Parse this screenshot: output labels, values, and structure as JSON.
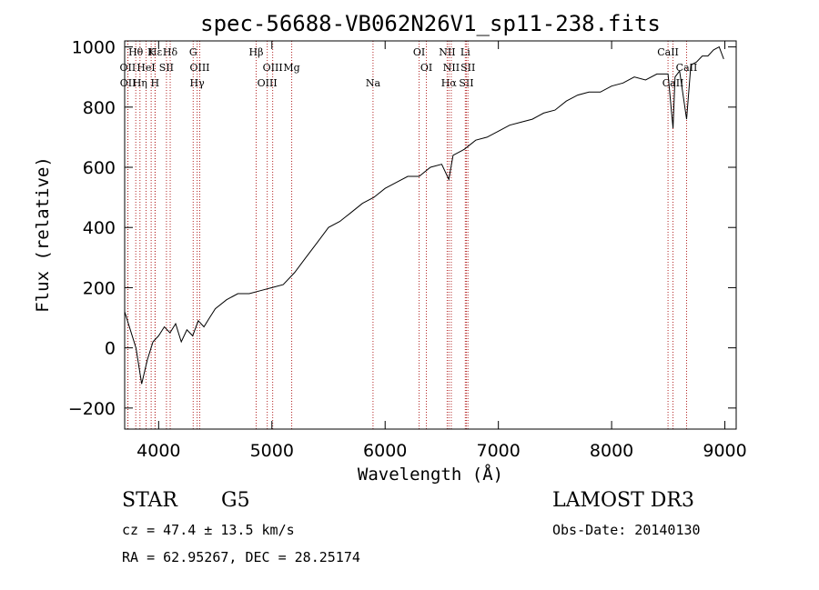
{
  "chart_data": {
    "type": "line",
    "title": "spec-56688-VB062N26V1_sp11-238.fits",
    "xlabel": "Wavelength (Å)",
    "ylabel": "Flux (relative)",
    "xlim": [
      3700,
      9100
    ],
    "ylim": [
      -270,
      1020
    ],
    "x_ticks": [
      4000,
      5000,
      6000,
      7000,
      8000,
      9000
    ],
    "y_ticks": [
      -200,
      0,
      200,
      400,
      600,
      800,
      1000
    ],
    "grid": false,
    "series": [
      {
        "name": "flux",
        "x": [
          3700,
          3750,
          3800,
          3850,
          3900,
          3950,
          4000,
          4050,
          4100,
          4150,
          4200,
          4250,
          4300,
          4350,
          4400,
          4450,
          4500,
          4600,
          4700,
          4800,
          4900,
          5000,
          5100,
          5200,
          5300,
          5400,
          5500,
          5600,
          5700,
          5800,
          5900,
          6000,
          6100,
          6200,
          6300,
          6400,
          6500,
          6562,
          6600,
          6700,
          6800,
          6900,
          7000,
          7100,
          7200,
          7300,
          7400,
          7500,
          7600,
          7700,
          7800,
          7900,
          8000,
          8100,
          8200,
          8300,
          8400,
          8498,
          8542,
          8560,
          8600,
          8662,
          8700,
          8750,
          8800,
          8850,
          8900,
          8950,
          8990
        ],
        "y": [
          120,
          60,
          0,
          -120,
          -40,
          20,
          40,
          70,
          50,
          80,
          20,
          60,
          40,
          90,
          70,
          100,
          130,
          160,
          180,
          180,
          190,
          200,
          210,
          250,
          300,
          350,
          400,
          420,
          450,
          480,
          500,
          530,
          550,
          570,
          570,
          600,
          610,
          560,
          640,
          660,
          690,
          700,
          720,
          740,
          750,
          760,
          780,
          790,
          820,
          840,
          850,
          850,
          870,
          880,
          900,
          890,
          910,
          910,
          730,
          900,
          920,
          760,
          940,
          950,
          970,
          970,
          990,
          1000,
          960
        ]
      }
    ],
    "spectral_lines": [
      {
        "label": "Hθ",
        "wavelength": 3798
      },
      {
        "label": "OII",
        "wavelength": 3727
      },
      {
        "label": "OII",
        "wavelength": 3729
      },
      {
        "label": "Hε",
        "wavelength": 3970
      },
      {
        "label": "HeI",
        "wavelength": 3889
      },
      {
        "label": "Hη",
        "wavelength": 3835
      },
      {
        "label": "K",
        "wavelength": 3934
      },
      {
        "label": "SII",
        "wavelength": 4069
      },
      {
        "label": "H",
        "wavelength": 3968
      },
      {
        "label": "Hδ",
        "wavelength": 4102
      },
      {
        "label": "OIII",
        "wavelength": 4363
      },
      {
        "label": "Hγ",
        "wavelength": 4340
      },
      {
        "label": "G",
        "wavelength": 4305
      },
      {
        "label": "OIII",
        "wavelength": 5007
      },
      {
        "label": "OIII",
        "wavelength": 4959
      },
      {
        "label": "Hβ",
        "wavelength": 4861
      },
      {
        "label": "Mg",
        "wavelength": 5175
      },
      {
        "label": "Na",
        "wavelength": 5893
      },
      {
        "label": "OI",
        "wavelength": 6300
      },
      {
        "label": "OI",
        "wavelength": 6364
      },
      {
        "label": "Hα",
        "wavelength": 6563
      },
      {
        "label": "NII",
        "wavelength": 6548
      },
      {
        "label": "NII",
        "wavelength": 6584
      },
      {
        "label": "SII",
        "wavelength": 6717
      },
      {
        "label": "Li",
        "wavelength": 6708
      },
      {
        "label": "SII",
        "wavelength": 6731
      },
      {
        "label": "CaII",
        "wavelength": 8542
      },
      {
        "label": "CaII",
        "wavelength": 8498
      },
      {
        "label": "CaII",
        "wavelength": 8662
      }
    ],
    "line_color": "#000000",
    "marker_color": "#b22222"
  },
  "info": {
    "object_type": "STAR",
    "subclass": "G5",
    "survey": "LAMOST DR3",
    "cz": "cz = 47.4 ± 13.5 km/s",
    "obs_date": "Obs-Date: 20140130",
    "coords": "RA =  62.95267, DEC =  28.25174"
  }
}
